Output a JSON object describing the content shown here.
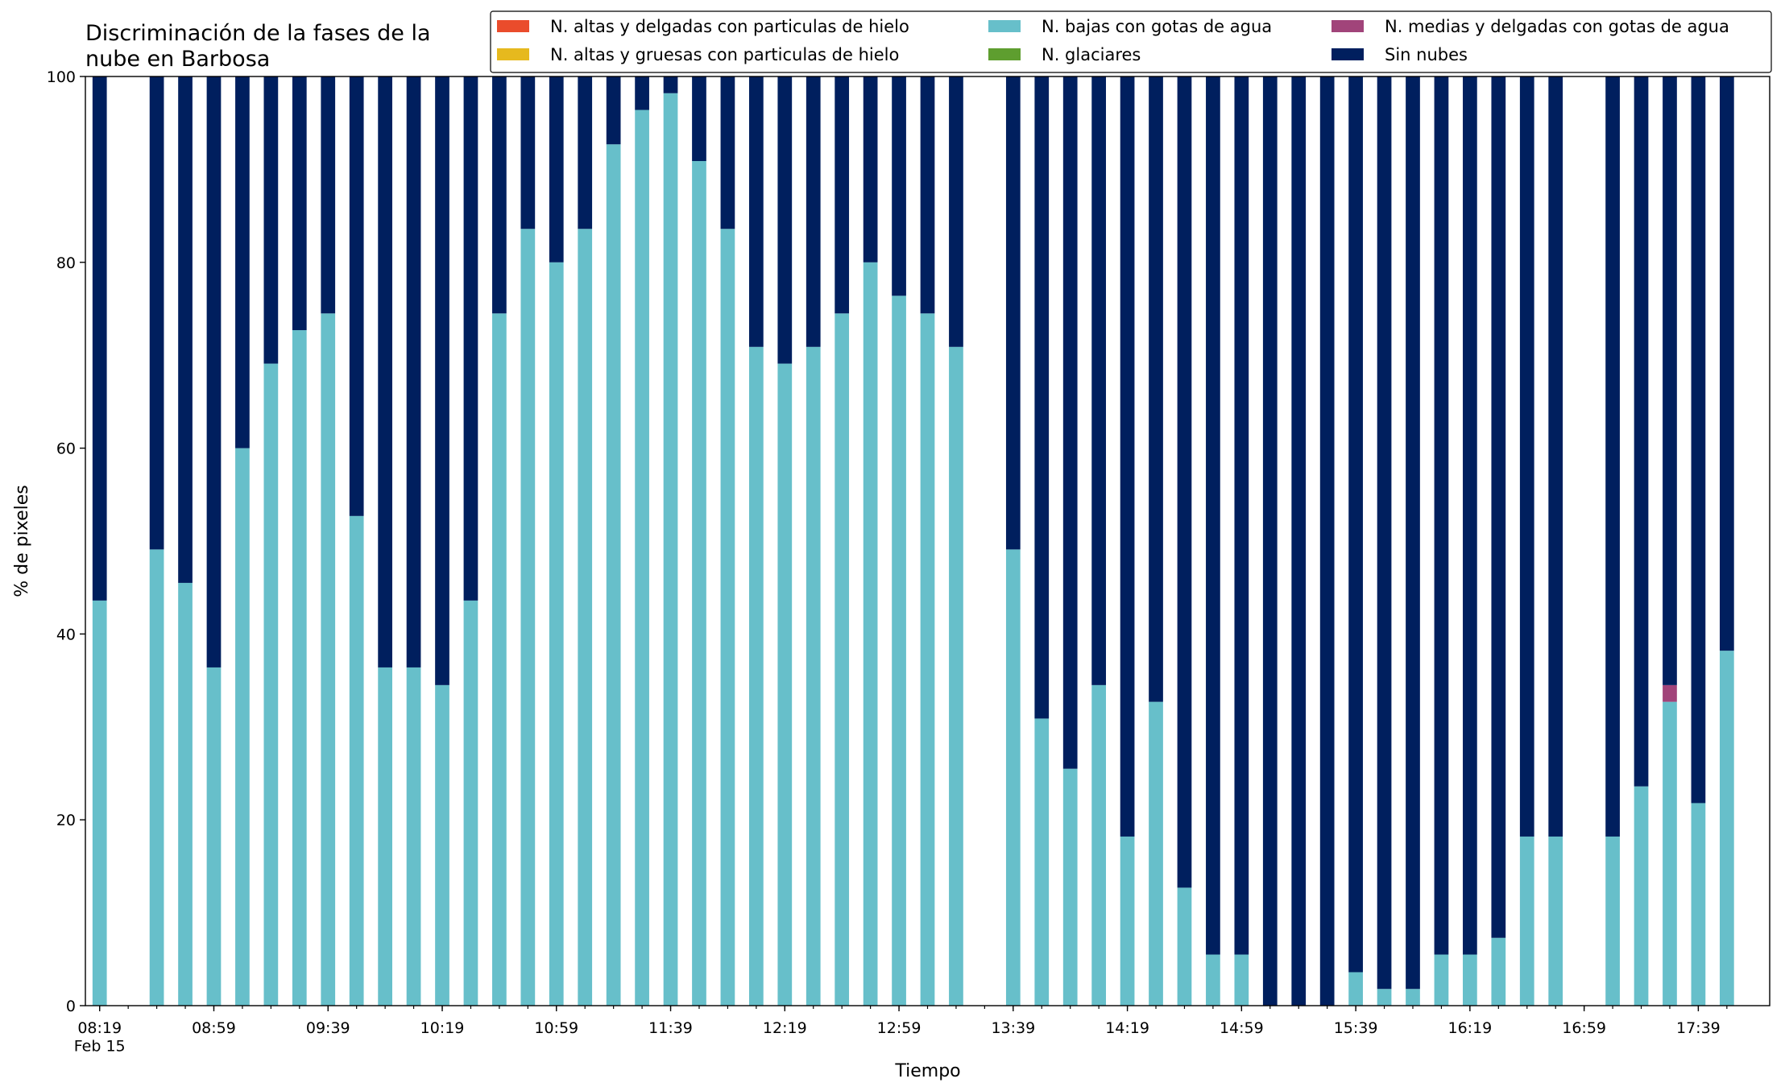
{
  "chart_data": {
    "type": "bar",
    "stacked": true,
    "title": "Discriminación de la fases de la\nnube en Barbosa",
    "xlabel": "Tiempo",
    "ylabel": "% de pixeles",
    "x": [
      "08:19",
      "08:29",
      "08:39",
      "08:49",
      "08:59",
      "09:09",
      "09:19",
      "09:29",
      "09:39",
      "09:49",
      "09:59",
      "10:09",
      "10:19",
      "10:29",
      "10:39",
      "10:49",
      "10:59",
      "11:09",
      "11:19",
      "11:29",
      "11:39",
      "11:49",
      "11:59",
      "12:09",
      "12:19",
      "12:29",
      "12:39",
      "12:49",
      "12:59",
      "13:09",
      "13:19",
      "13:29",
      "13:39",
      "13:49",
      "13:59",
      "14:09",
      "14:19",
      "14:29",
      "14:39",
      "14:49",
      "14:59",
      "15:09",
      "15:19",
      "15:29",
      "15:39",
      "15:49",
      "15:59",
      "16:09",
      "16:19",
      "16:29",
      "16:39",
      "16:49",
      "16:59",
      "17:09",
      "17:19",
      "17:29",
      "17:39",
      "17:49"
    ],
    "xlim": [
      "08:14",
      "18:04"
    ],
    "xticks": [
      {
        "value": "08:19",
        "label": "08:19\nFeb 15"
      },
      "08:59",
      "09:39",
      "10:19",
      "10:59",
      "11:39",
      "12:19",
      "12:59",
      "13:39",
      "14:19",
      "14:59",
      "15:39",
      "16:19",
      "16:59",
      "17:39"
    ],
    "ylim": [
      0,
      100
    ],
    "yticks": [
      0,
      20,
      40,
      60,
      80,
      100
    ],
    "legend": "top-right",
    "series": [
      {
        "name": "N. altas y delgadas con particulas de hielo",
        "color": "#ea4c2c",
        "values": [
          0,
          null,
          0,
          0,
          0,
          0,
          0,
          0,
          0,
          0,
          0,
          0,
          0,
          0,
          0,
          0,
          0,
          0,
          0,
          0,
          0,
          0,
          0,
          0,
          0,
          0,
          0,
          0,
          0,
          0,
          0,
          null,
          0,
          0,
          0,
          0,
          0,
          0,
          0,
          0,
          0,
          0,
          0,
          0,
          0,
          0,
          0,
          0,
          0,
          0,
          0,
          0,
          null,
          0,
          0,
          0,
          0,
          0
        ]
      },
      {
        "name": "N. altas y gruesas con particulas de hielo",
        "color": "#e6b91e",
        "values": [
          0,
          null,
          0,
          0,
          0,
          0,
          0,
          0,
          0,
          0,
          0,
          0,
          0,
          0,
          0,
          0,
          0,
          0,
          0,
          0,
          0,
          0,
          0,
          0,
          0,
          0,
          0,
          0,
          0,
          0,
          0,
          null,
          0,
          0,
          0,
          0,
          0,
          0,
          0,
          0,
          0,
          0,
          0,
          0,
          0,
          0,
          0,
          0,
          0,
          0,
          0,
          0,
          null,
          0,
          0,
          0,
          0,
          0
        ]
      },
      {
        "name": "N. bajas con gotas de agua",
        "color": "#67bfca",
        "values": [
          43.6,
          null,
          49.1,
          45.5,
          36.4,
          60,
          69.1,
          72.7,
          74.5,
          52.7,
          36.4,
          36.4,
          34.5,
          43.6,
          74.5,
          83.6,
          80,
          83.6,
          92.7,
          96.4,
          98.2,
          90.9,
          83.6,
          70.9,
          69.1,
          70.9,
          74.5,
          80,
          76.4,
          74.5,
          70.9,
          null,
          49.1,
          30.9,
          25.5,
          34.5,
          18.2,
          32.7,
          12.7,
          5.5,
          5.5,
          0,
          0,
          0,
          3.6,
          1.8,
          1.8,
          5.5,
          5.5,
          7.3,
          18.2,
          18.2,
          null,
          18.2,
          23.6,
          32.7,
          21.8,
          38.2
        ]
      },
      {
        "name": "N. glaciares",
        "color": "#5e9e2f",
        "values": [
          0,
          null,
          0,
          0,
          0,
          0,
          0,
          0,
          0,
          0,
          0,
          0,
          0,
          0,
          0,
          0,
          0,
          0,
          0,
          0,
          0,
          0,
          0,
          0,
          0,
          0,
          0,
          0,
          0,
          0,
          0,
          null,
          0,
          0,
          0,
          0,
          0,
          0,
          0,
          0,
          0,
          0,
          0,
          0,
          0,
          0,
          0,
          0,
          0,
          0,
          0,
          0,
          null,
          0,
          0,
          0,
          0,
          0
        ]
      },
      {
        "name": "N. medias y delgadas con gotas de agua",
        "color": "#a1447a",
        "values": [
          0,
          null,
          0,
          0,
          0,
          0,
          0,
          0,
          0,
          0,
          0,
          0,
          0,
          0,
          0,
          0,
          0,
          0,
          0,
          0,
          0,
          0,
          0,
          0,
          0,
          0,
          0,
          0,
          0,
          0,
          0,
          null,
          0,
          0,
          0,
          0,
          0,
          0,
          0,
          0,
          0,
          0,
          0,
          0,
          0,
          0,
          0,
          0,
          0,
          0,
          0,
          0,
          null,
          0,
          0,
          1.8,
          0,
          0
        ]
      },
      {
        "name": "Sin nubes",
        "color": "#001f5e",
        "values": [
          56.4,
          null,
          50.9,
          54.5,
          63.6,
          40,
          30.9,
          27.3,
          25.5,
          47.3,
          63.6,
          63.6,
          65.5,
          56.4,
          25.5,
          16.4,
          20,
          16.4,
          7.3,
          3.6,
          1.8,
          9.1,
          16.4,
          29.1,
          30.9,
          29.1,
          25.5,
          20,
          23.6,
          25.5,
          29.1,
          null,
          50.9,
          69.1,
          74.5,
          65.5,
          81.8,
          67.3,
          87.3,
          94.5,
          94.5,
          100,
          100,
          100,
          96.4,
          98.2,
          98.2,
          94.5,
          94.5,
          92.7,
          81.8,
          81.8,
          null,
          81.8,
          76.4,
          65.5,
          78.2,
          61.8
        ]
      }
    ]
  }
}
